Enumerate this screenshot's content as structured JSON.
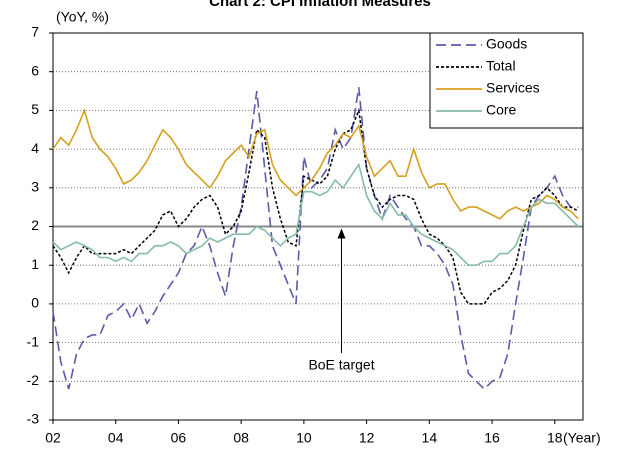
{
  "chart_data": {
    "type": "line",
    "title": "Chart 2: CPI Inflation Measures",
    "y_label": "(YoY, %)",
    "x_label": "(Year)",
    "annotation": "BoE target",
    "target_line": 2,
    "xlim": [
      2002,
      2018.9
    ],
    "xticks": [
      {
        "value": 2002,
        "label": "02"
      },
      {
        "value": 2004,
        "label": "04"
      },
      {
        "value": 2006,
        "label": "06"
      },
      {
        "value": 2008,
        "label": "08"
      },
      {
        "value": 2010,
        "label": "10"
      },
      {
        "value": 2012,
        "label": "12"
      },
      {
        "value": 2014,
        "label": "14"
      },
      {
        "value": 2016,
        "label": "16"
      },
      {
        "value": 2018,
        "label": "18"
      }
    ],
    "ylim": [
      -3,
      7
    ],
    "yticks": [
      -3,
      -2,
      -1,
      0,
      1,
      2,
      3,
      4,
      5,
      6,
      7
    ],
    "grid": true,
    "legend": "upper right",
    "x": [
      2002,
      2002.25,
      2002.5,
      2002.75,
      2003,
      2003.25,
      2003.5,
      2003.75,
      2004,
      2004.25,
      2004.5,
      2004.75,
      2005,
      2005.25,
      2005.5,
      2005.75,
      2006,
      2006.25,
      2006.5,
      2006.75,
      2007,
      2007.25,
      2007.5,
      2007.75,
      2008,
      2008.25,
      2008.5,
      2008.75,
      2009,
      2009.25,
      2009.5,
      2009.75,
      2010,
      2010.25,
      2010.5,
      2010.75,
      2011,
      2011.25,
      2011.5,
      2011.75,
      2012,
      2012.25,
      2012.5,
      2012.75,
      2013,
      2013.25,
      2013.5,
      2013.75,
      2014,
      2014.25,
      2014.5,
      2014.75,
      2015,
      2015.25,
      2015.5,
      2015.75,
      2016,
      2016.25,
      2016.5,
      2016.75,
      2017,
      2017.25,
      2017.5,
      2017.75,
      2018,
      2018.25,
      2018.5,
      2018.75
    ],
    "series": [
      {
        "name": "Goods",
        "color": "#5b5bab",
        "dash": "dashed",
        "values": [
          -0.2,
          -1.5,
          -2.2,
          -1.3,
          -0.9,
          -0.8,
          -0.8,
          -0.3,
          -0.2,
          0.0,
          -0.4,
          0.0,
          -0.5,
          -0.2,
          0.2,
          0.5,
          0.8,
          1.3,
          1.5,
          2.0,
          1.5,
          0.8,
          0.2,
          1.5,
          2.5,
          4.0,
          5.5,
          3.5,
          1.5,
          1.0,
          0.5,
          0.0,
          3.8,
          3.0,
          3.2,
          3.5,
          4.5,
          4.0,
          4.3,
          5.6,
          3.5,
          2.8,
          2.2,
          2.8,
          2.5,
          2.2,
          2.0,
          1.5,
          1.5,
          1.3,
          1.0,
          0.5,
          -0.8,
          -1.8,
          -2.0,
          -2.2,
          -2.0,
          -1.9,
          -1.3,
          0.0,
          1.2,
          2.5,
          2.8,
          3.0,
          3.3,
          2.8,
          2.5,
          2.5
        ]
      },
      {
        "name": "Total",
        "color": "#000000",
        "dash": "dotted",
        "values": [
          1.5,
          1.2,
          0.8,
          1.2,
          1.5,
          1.3,
          1.3,
          1.3,
          1.3,
          1.4,
          1.3,
          1.5,
          1.7,
          1.9,
          2.3,
          2.4,
          2.0,
          2.2,
          2.5,
          2.7,
          2.8,
          2.5,
          1.8,
          2.0,
          2.4,
          3.4,
          4.5,
          4.3,
          3.0,
          2.2,
          1.6,
          1.5,
          3.3,
          3.2,
          3.1,
          3.3,
          4.0,
          4.4,
          4.5,
          5.0,
          3.5,
          2.8,
          2.5,
          2.7,
          2.8,
          2.8,
          2.7,
          2.2,
          1.8,
          1.7,
          1.5,
          1.2,
          0.3,
          0.0,
          0.0,
          0.0,
          0.3,
          0.4,
          0.6,
          1.0,
          1.9,
          2.7,
          2.8,
          3.0,
          2.8,
          2.5,
          2.5,
          2.4
        ]
      },
      {
        "name": "Services",
        "color": "#d4a020",
        "dash": "solid",
        "values": [
          4.0,
          4.3,
          4.1,
          4.5,
          5.0,
          4.3,
          4.0,
          3.8,
          3.5,
          3.1,
          3.2,
          3.4,
          3.7,
          4.1,
          4.5,
          4.3,
          4.0,
          3.6,
          3.4,
          3.2,
          3.0,
          3.3,
          3.7,
          3.9,
          4.1,
          3.8,
          4.4,
          4.5,
          3.6,
          3.2,
          3.0,
          2.8,
          3.0,
          3.2,
          3.5,
          3.9,
          4.1,
          4.4,
          4.3,
          4.6,
          3.8,
          3.3,
          3.5,
          3.7,
          3.3,
          3.3,
          4.0,
          3.4,
          3.0,
          3.1,
          3.1,
          2.7,
          2.4,
          2.5,
          2.5,
          2.4,
          2.3,
          2.2,
          2.4,
          2.5,
          2.4,
          2.5,
          2.6,
          2.8,
          2.7,
          2.5,
          2.4,
          2.2
        ]
      },
      {
        "name": "Core",
        "color": "#86bca8",
        "dash": "solid",
        "values": [
          1.6,
          1.4,
          1.5,
          1.6,
          1.5,
          1.4,
          1.2,
          1.2,
          1.1,
          1.2,
          1.1,
          1.3,
          1.3,
          1.5,
          1.5,
          1.6,
          1.5,
          1.3,
          1.4,
          1.5,
          1.7,
          1.6,
          1.7,
          1.8,
          1.8,
          1.8,
          2.0,
          1.9,
          1.7,
          1.5,
          1.7,
          1.8,
          2.9,
          2.9,
          2.8,
          2.9,
          3.2,
          3.0,
          3.3,
          3.6,
          2.8,
          2.4,
          2.2,
          2.6,
          2.3,
          2.3,
          2.0,
          1.8,
          1.7,
          1.6,
          1.5,
          1.4,
          1.2,
          1.0,
          1.0,
          1.1,
          1.1,
          1.3,
          1.3,
          1.5,
          2.0,
          2.5,
          2.7,
          2.6,
          2.6,
          2.4,
          2.2,
          2.0
        ]
      }
    ]
  }
}
